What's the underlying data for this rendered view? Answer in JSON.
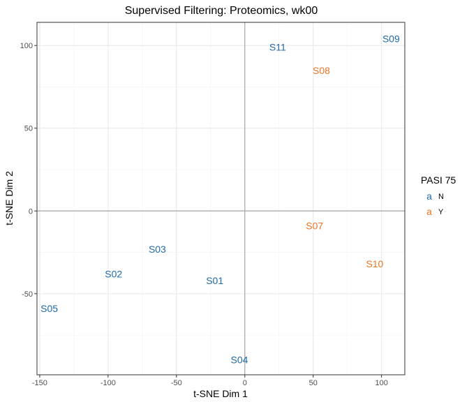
{
  "chart_data": {
    "type": "scatter",
    "title": "Supervised Filtering: Proteomics, wk00",
    "xlabel": "t-SNE Dim 1",
    "ylabel": "t-SNE Dim 2",
    "xlim": [
      -152,
      117
    ],
    "ylim": [
      -99,
      114
    ],
    "x_ticks": [
      -150,
      -100,
      -50,
      0,
      50,
      100
    ],
    "y_ticks": [
      -50,
      0,
      50,
      100
    ],
    "grid": true,
    "zero_lines": true,
    "legend": {
      "title": "PASI 75",
      "placement": "right",
      "key_glyph": "a",
      "entries": [
        {
          "label": "N",
          "color": "#1f6aa8"
        },
        {
          "label": "Y",
          "color": "#f07424"
        }
      ]
    },
    "points": [
      {
        "label": "S01",
        "x": -22,
        "y": -42,
        "group": "N"
      },
      {
        "label": "S02",
        "x": -96,
        "y": -38,
        "group": "N"
      },
      {
        "label": "S03",
        "x": -64,
        "y": -23,
        "group": "N"
      },
      {
        "label": "S04",
        "x": -4,
        "y": -90,
        "group": "N"
      },
      {
        "label": "S05",
        "x": -143,
        "y": -59,
        "group": "N"
      },
      {
        "label": "S07",
        "x": 51,
        "y": -9,
        "group": "Y"
      },
      {
        "label": "S08",
        "x": 56,
        "y": 85,
        "group": "Y"
      },
      {
        "label": "S09",
        "x": 107,
        "y": 104,
        "group": "N"
      },
      {
        "label": "S10",
        "x": 95,
        "y": -32,
        "group": "Y"
      },
      {
        "label": "S11",
        "x": 24,
        "y": 99,
        "group": "N"
      }
    ]
  }
}
